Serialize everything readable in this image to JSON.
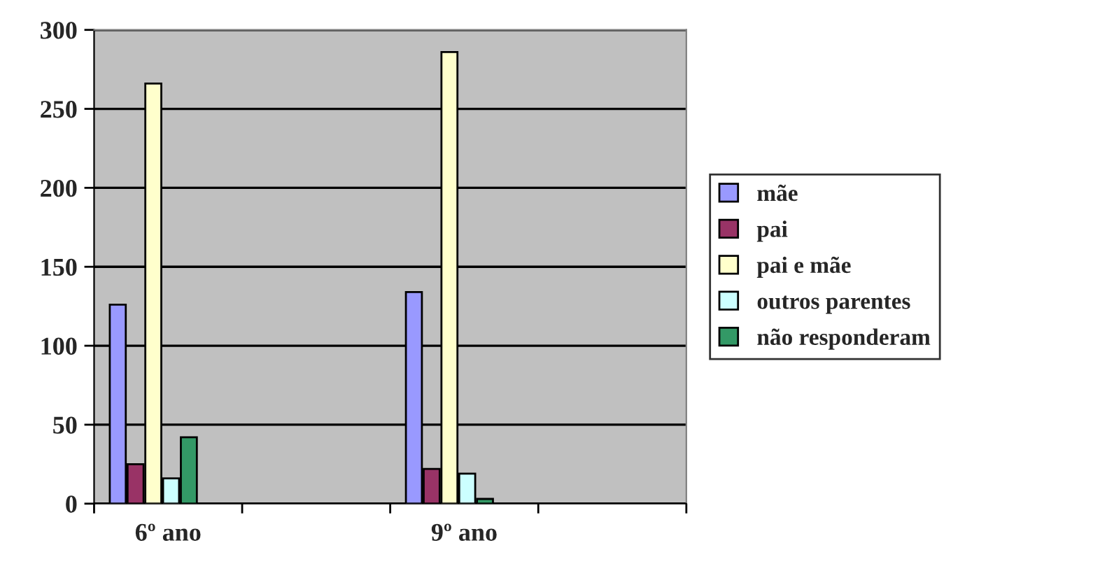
{
  "chart_data": {
    "type": "bar",
    "categories": [
      "6º ano",
      null,
      "9º ano",
      null
    ],
    "series": [
      {
        "name": "mãe",
        "color": "#9999ff",
        "values": [
          126,
          null,
          134,
          null
        ]
      },
      {
        "name": "pai",
        "color": "#993366",
        "values": [
          25,
          null,
          22,
          null
        ]
      },
      {
        "name": "pai e mãe",
        "color": "#ffffcc",
        "values": [
          266,
          null,
          286,
          null
        ]
      },
      {
        "name": "outros parentes",
        "color": "#ccffff",
        "values": [
          16,
          null,
          19,
          null
        ]
      },
      {
        "name": "não responderam",
        "color": "#339966",
        "values": [
          42,
          null,
          3,
          null
        ]
      }
    ],
    "ylim": [
      0,
      300
    ],
    "yticks": [
      0,
      50,
      100,
      150,
      200,
      250,
      300
    ],
    "grid": "y",
    "legend": "right"
  }
}
